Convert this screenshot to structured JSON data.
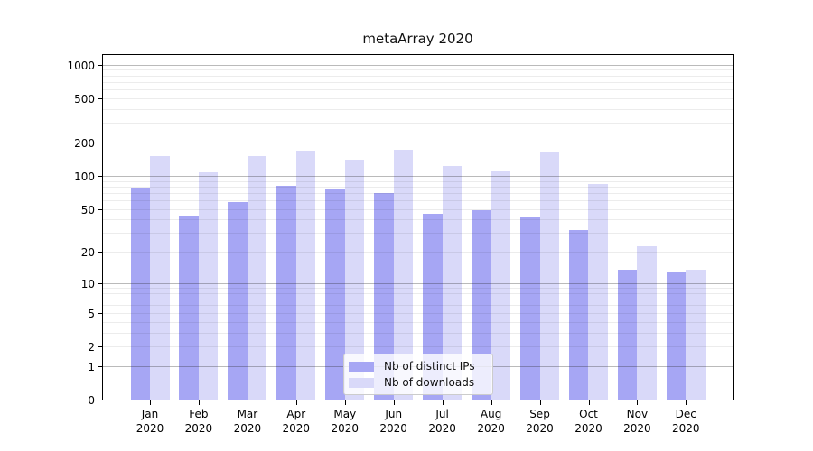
{
  "title": "metaArray 2020",
  "chart_data": {
    "type": "bar",
    "title": "metaArray 2020",
    "categories": [
      "Jan",
      "Feb",
      "Mar",
      "Apr",
      "May",
      "Jun",
      "Jul",
      "Aug",
      "Sep",
      "Oct",
      "Nov",
      "Dec"
    ],
    "year_label": "2020",
    "series": [
      {
        "name": "Nb of distinct IPs",
        "color": "#a6a6f4",
        "values": [
          80,
          44,
          59,
          83,
          78,
          71,
          46,
          50,
          43,
          33,
          14,
          13
        ]
      },
      {
        "name": "Nb of downloads",
        "color": "#d9d9f9",
        "values": [
          155,
          110,
          153,
          171,
          144,
          176,
          125,
          112,
          165,
          86,
          23,
          14
        ]
      }
    ],
    "yscale": "log10(1+x)",
    "ylim": [
      0,
      1270
    ],
    "y_ticks": [
      0,
      1,
      2,
      5,
      10,
      20,
      50,
      100,
      200,
      500,
      1000
    ],
    "grid": true,
    "grid_major_values": [
      1,
      10,
      100,
      1000
    ],
    "grid_minor_values": [
      2,
      3,
      4,
      5,
      6,
      7,
      8,
      9,
      20,
      30,
      40,
      50,
      60,
      70,
      80,
      90,
      200,
      300,
      400,
      500,
      600,
      700,
      800,
      900
    ],
    "legend_position": "inside lower-center",
    "colors": {
      "grid_major": "rgba(40,40,40,0.32)",
      "grid_minor": "rgba(40,40,40,0.085)",
      "axis": "#000000",
      "legend_border": "#cccccc",
      "legend_background": "rgba(255,255,255,0.8)"
    }
  }
}
